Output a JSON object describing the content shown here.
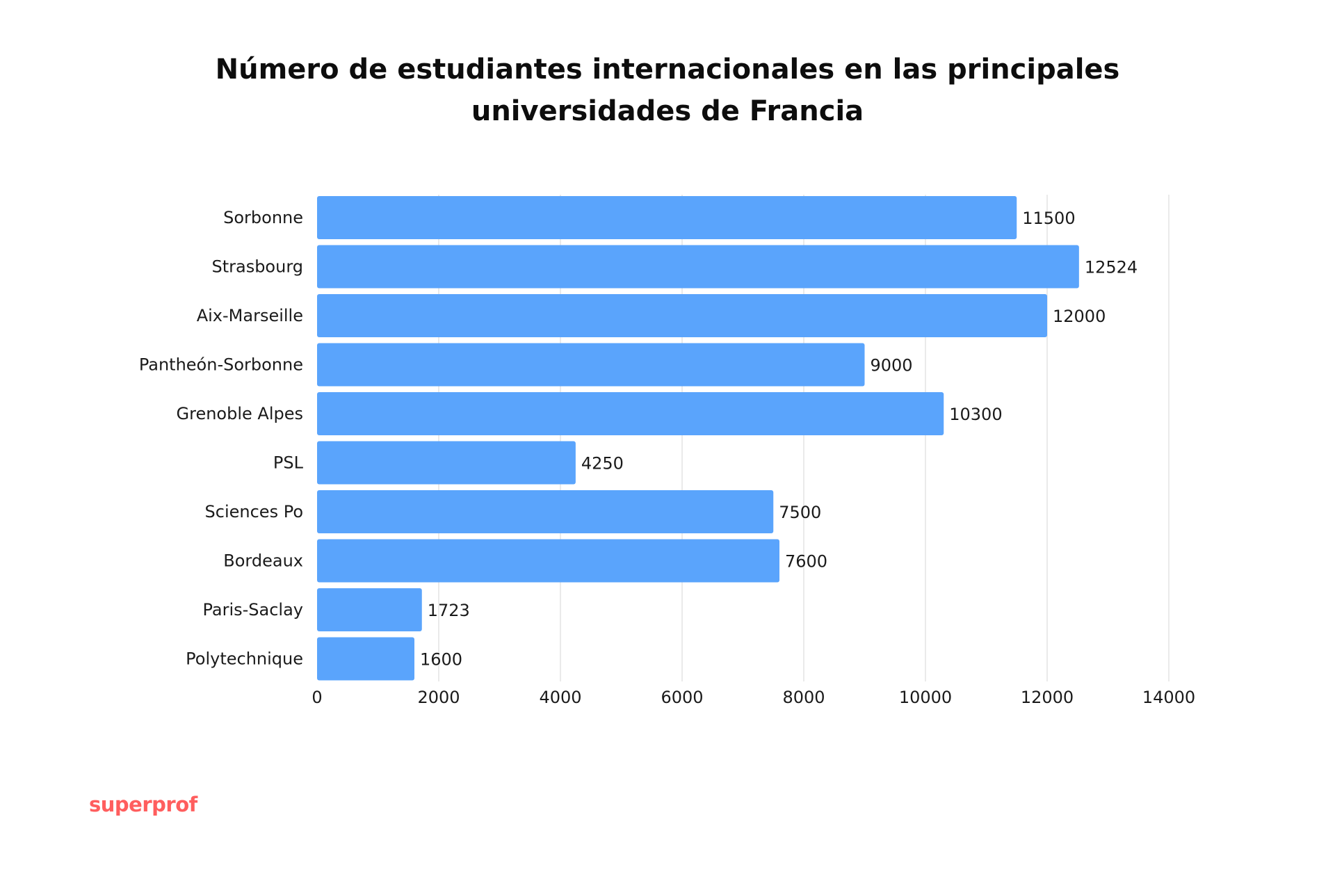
{
  "chart_data": {
    "type": "bar",
    "orientation": "horizontal",
    "title_line1": "Número de estudiantes internacionales en las principales",
    "title_line2": "universidades de Francia",
    "categories": [
      "Sorbonne",
      "Strasbourg",
      "Aix-Marseille",
      "Pantheón-Sorbonne",
      "Grenoble Alpes",
      "PSL",
      "Sciences Po",
      "Bordeaux",
      "Paris-Saclay",
      "Polytechnique"
    ],
    "values": [
      11500,
      12524,
      12000,
      9000,
      10300,
      4250,
      7500,
      7600,
      1723,
      1600
    ],
    "xlim": [
      0,
      14000
    ],
    "xticks": [
      0,
      2000,
      4000,
      6000,
      8000,
      10000,
      12000,
      14000
    ],
    "grid": true,
    "bar_color": "#5aa4fc",
    "data_labels": true
  },
  "brand": {
    "text": "superprof",
    "color": "#ff5e5e"
  }
}
